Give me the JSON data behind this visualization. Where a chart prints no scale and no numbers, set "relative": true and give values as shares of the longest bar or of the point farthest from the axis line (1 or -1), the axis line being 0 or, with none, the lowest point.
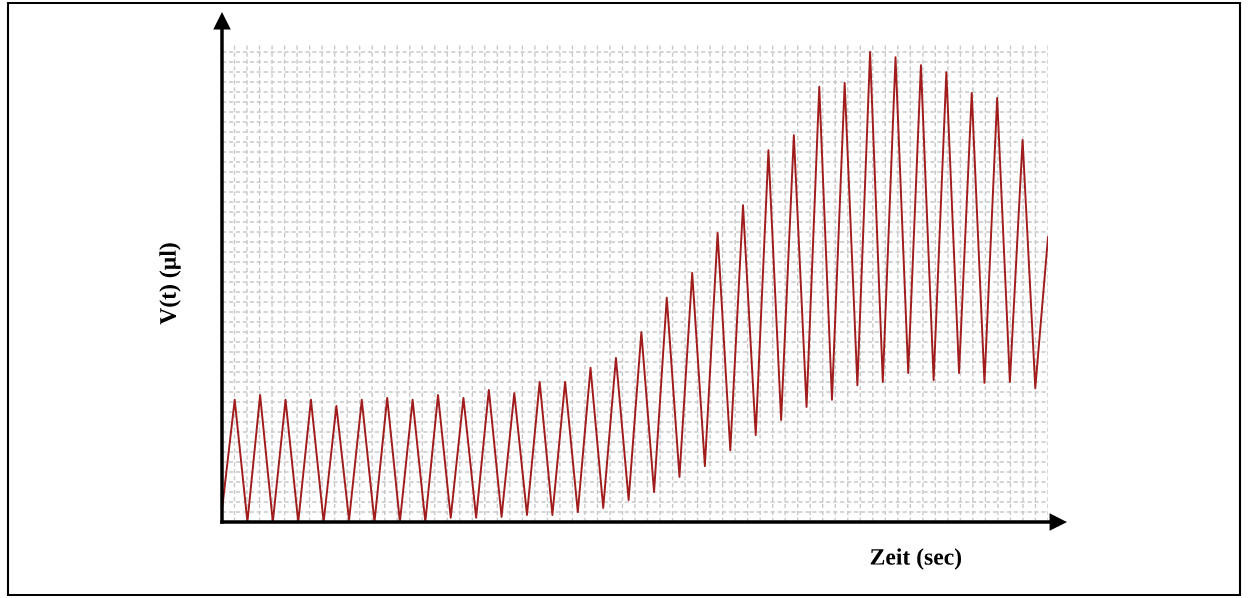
{
  "chart_data": {
    "type": "line",
    "relative": true,
    "xlabel": "Zeit (sec)",
    "ylabel": "V(t) (µl)",
    "grid": true,
    "line_style": "solid",
    "marker": "none",
    "categories": [
      null,
      null,
      null,
      null,
      null,
      null,
      null,
      null,
      null,
      null,
      null,
      null,
      null,
      null,
      null,
      null,
      null,
      null,
      null,
      null,
      null,
      null,
      null,
      null,
      null,
      null,
      null,
      null,
      null,
      null,
      null,
      null,
      null,
      null,
      null,
      null,
      null,
      null,
      null,
      null,
      null,
      null,
      null,
      null,
      null,
      null,
      null,
      null,
      null,
      null,
      null,
      null,
      null,
      null,
      null,
      null,
      null,
      null,
      null,
      null,
      null,
      null,
      null,
      null,
      null,
      null
    ],
    "series": [
      {
        "color": "#a11d1d",
        "values": [
          0.026,
          0.26,
          0,
          0.27,
          0,
          0.26,
          0,
          0.26,
          0,
          0.247,
          0.004,
          0.26,
          0,
          0.264,
          0,
          0.26,
          0,
          0.27,
          0.009,
          0.264,
          0.009,
          0.281,
          0.011,
          0.274,
          0.015,
          0.298,
          0.015,
          0.298,
          0.021,
          0.328,
          0.03,
          0.349,
          0.047,
          0.404,
          0.064,
          0.477,
          0.096,
          0.53,
          0.119,
          0.615,
          0.153,
          0.674,
          0.185,
          0.791,
          0.217,
          0.823,
          0.245,
          0.926,
          0.26,
          0.934,
          0.291,
          1,
          0.298,
          0.989,
          0.317,
          0.972,
          0.302,
          0.957,
          0.317,
          0.913,
          0.296,
          0.902,
          0.298,
          0.813,
          0.285,
          0.606
        ]
      }
    ]
  }
}
